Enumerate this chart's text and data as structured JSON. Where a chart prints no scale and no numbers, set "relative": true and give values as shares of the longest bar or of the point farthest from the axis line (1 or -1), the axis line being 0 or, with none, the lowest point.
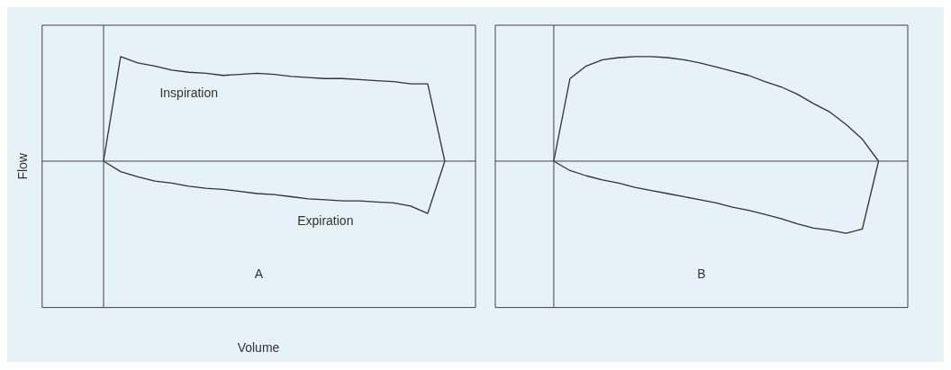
{
  "chart_data": [
    {
      "type": "line",
      "relative": true,
      "ylabel": "Flow",
      "xlabel": "Volume",
      "annotations": [
        "A"
      ],
      "grid": false,
      "legend": false,
      "marker": "none",
      "categories": [
        null,
        null,
        null,
        null,
        null,
        null,
        null,
        null,
        null,
        null,
        null,
        null,
        null,
        null,
        null,
        null,
        null,
        null,
        null,
        null,
        null
      ],
      "series": [
        {
          "name": "Inspiration",
          "color": "#333333",
          "values": [
            0,
            1.0,
            0.94,
            0.91,
            0.87,
            0.85,
            0.84,
            0.82,
            0.83,
            0.84,
            0.83,
            0.81,
            0.8,
            0.79,
            0.79,
            0.78,
            0.77,
            0.76,
            0.74,
            0.74,
            0
          ]
        },
        {
          "name": "Expiration",
          "color": "#333333",
          "values": [
            0,
            -0.1,
            -0.15,
            -0.19,
            -0.21,
            -0.24,
            -0.26,
            -0.27,
            -0.29,
            -0.31,
            -0.32,
            -0.34,
            -0.36,
            -0.37,
            -0.38,
            -0.38,
            -0.39,
            -0.4,
            -0.43,
            -0.5,
            0
          ]
        }
      ]
    },
    {
      "type": "line",
      "relative": true,
      "annotations": [
        "B"
      ],
      "grid": false,
      "legend": false,
      "marker": "none",
      "categories": [
        null,
        null,
        null,
        null,
        null,
        null,
        null,
        null,
        null,
        null,
        null,
        null,
        null,
        null,
        null,
        null,
        null,
        null,
        null,
        null,
        null
      ],
      "series": [
        {
          "color": "#333333",
          "values": [
            0,
            0.79,
            0.91,
            0.97,
            0.99,
            1.0,
            1.0,
            0.99,
            0.97,
            0.94,
            0.9,
            0.86,
            0.82,
            0.76,
            0.71,
            0.64,
            0.55,
            0.47,
            0.35,
            0.21,
            0
          ]
        },
        {
          "color": "#333333",
          "values": [
            0,
            -0.09,
            -0.14,
            -0.18,
            -0.21,
            -0.25,
            -0.28,
            -0.31,
            -0.34,
            -0.37,
            -0.4,
            -0.44,
            -0.47,
            -0.51,
            -0.55,
            -0.6,
            -0.64,
            -0.66,
            -0.69,
            -0.65,
            0
          ]
        }
      ]
    }
  ]
}
